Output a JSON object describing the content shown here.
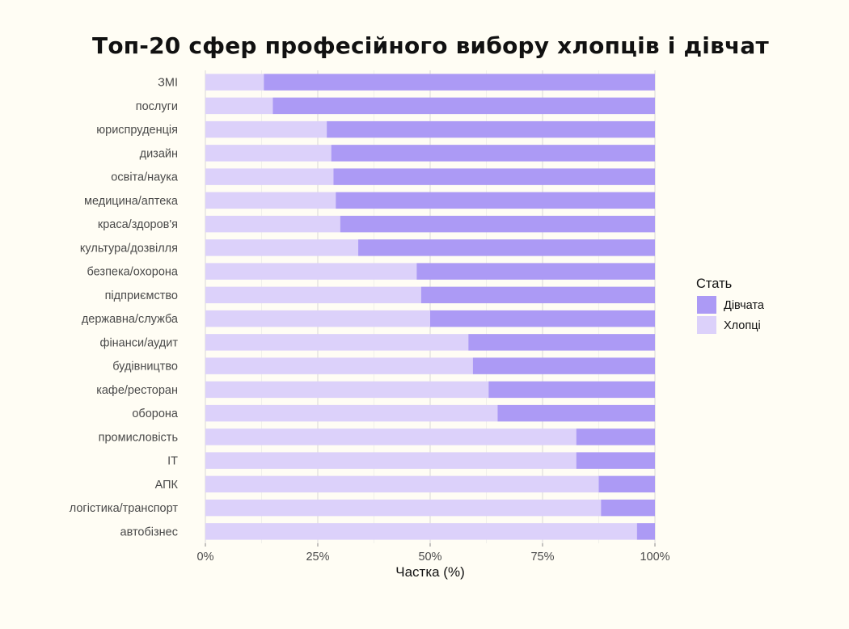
{
  "chart_data": {
    "type": "bar",
    "orientation": "horizontal",
    "stacked": "percent",
    "title": "Топ-20 сфер професійного вибору хлопців і дівчат",
    "xlabel": "Частка (%)",
    "ylabel": "",
    "xlim": [
      0,
      100
    ],
    "x_ticks": [
      "0%",
      "25%",
      "50%",
      "75%",
      "100%"
    ],
    "x_tick_values": [
      0,
      25,
      50,
      75,
      100
    ],
    "grid": true,
    "legend_position": "right",
    "legend_title": "Стать",
    "categories": [
      "ЗМІ",
      "послуги",
      "юриспруденція",
      "дизайн",
      "освіта/наука",
      "медицина/аптека",
      "краса/здоров'я",
      "культура/дозвілля",
      "безпека/охорона",
      "підприємство",
      "державна/служба",
      "фінанси/аудит",
      "будівництво",
      "кафе/ресторан",
      "оборона",
      "промисловість",
      "IT",
      "АПК",
      "логістика/транспорт",
      "автобізнес"
    ],
    "series": [
      {
        "name": "Хлопці",
        "color": "#DCD1FA",
        "values": [
          13,
          15,
          27,
          28,
          28.5,
          29,
          30,
          34,
          47,
          48,
          50,
          58.5,
          59.5,
          63,
          65,
          82.5,
          82.5,
          87.5,
          88,
          96
        ]
      },
      {
        "name": "Дівчата",
        "color": "#AC9AF5",
        "values": [
          87,
          85,
          73,
          72,
          71.5,
          71,
          70,
          66,
          53,
          52,
          50,
          41.5,
          40.5,
          37,
          35,
          17.5,
          17.5,
          12.5,
          12,
          4
        ]
      }
    ],
    "legend_entries": [
      "Дівчата",
      "Хлопці"
    ]
  },
  "colors": {
    "background": "#FFFDF4",
    "plot_background": "#FFFDF4",
    "grid": "#D8D8D8"
  }
}
